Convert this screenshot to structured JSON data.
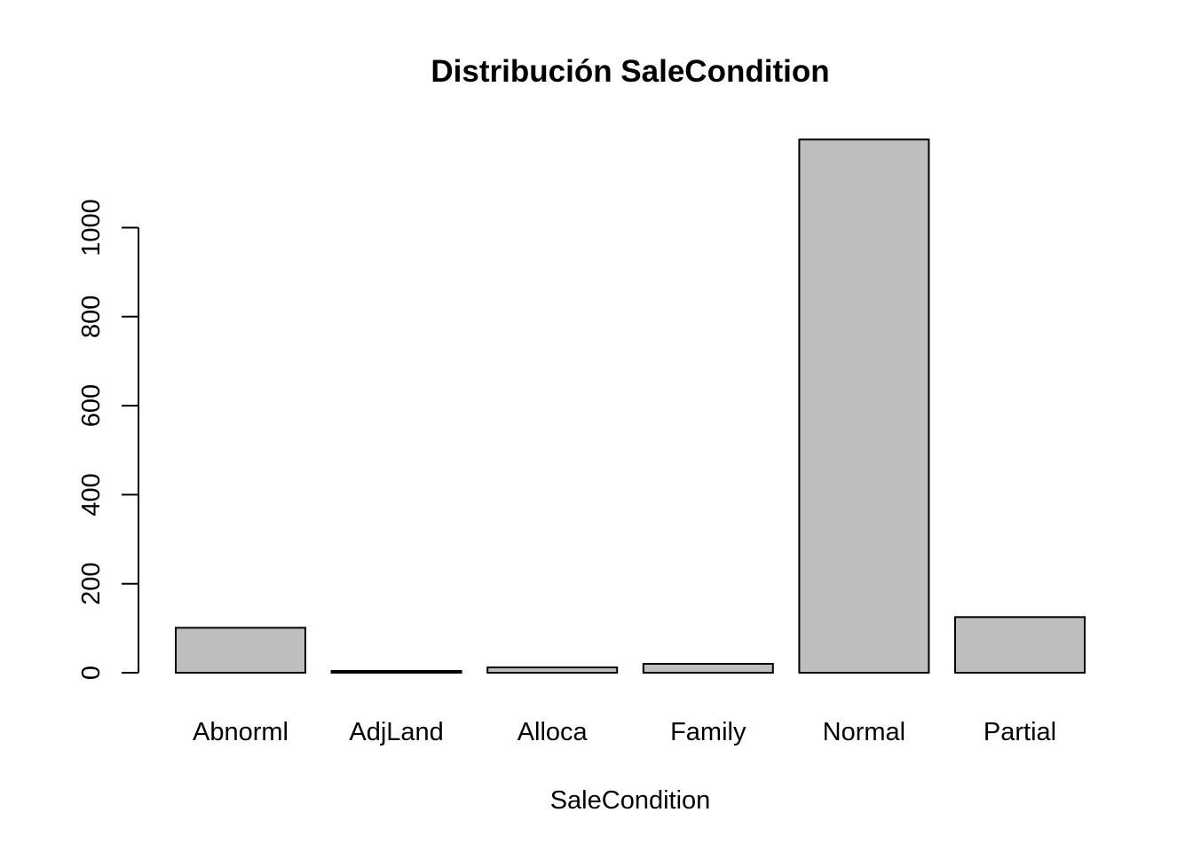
{
  "chart_data": {
    "type": "bar",
    "title": "Distribución SaleCondition",
    "xlabel": "SaleCondition",
    "ylabel": "",
    "categories": [
      "Abnorml",
      "AdjLand",
      "Alloca",
      "Family",
      "Normal",
      "Partial"
    ],
    "values": [
      101,
      4,
      12,
      20,
      1198,
      125
    ],
    "yticks": [
      0,
      200,
      400,
      600,
      800,
      1000
    ],
    "ylim": [
      0,
      1198
    ],
    "grid": false,
    "bar_color": "#bebebe",
    "bar_edge_color": "#000000"
  }
}
